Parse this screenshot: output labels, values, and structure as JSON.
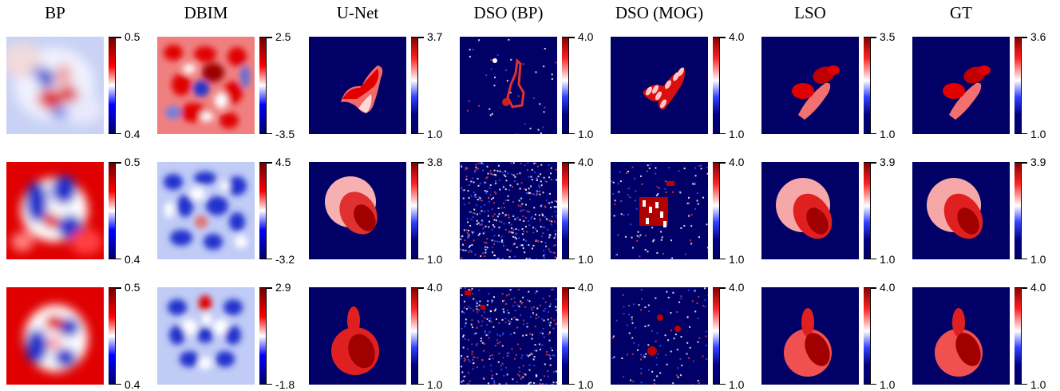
{
  "columns": [
    {
      "title": "BP",
      "ramp": "coolwarm",
      "colorbars": [
        [
          "0.5",
          "0.4"
        ],
        [
          "0.5",
          "0.4"
        ],
        [
          "0.5",
          "0.4"
        ]
      ],
      "kinds": [
        "bp1",
        "bp2",
        "bp3"
      ]
    },
    {
      "title": "DBIM",
      "ramp": "coolwarm",
      "colorbars": [
        [
          "2.5",
          "-3.5"
        ],
        [
          "4.5",
          "-3.2"
        ],
        [
          "2.9",
          "-1.8"
        ]
      ],
      "kinds": [
        "dbim1",
        "dbim2",
        "dbim3"
      ]
    },
    {
      "title": "U-Net",
      "ramp": "navy",
      "colorbars": [
        [
          "3.7",
          "1.0"
        ],
        [
          "3.8",
          "1.0"
        ],
        [
          "4.0",
          "1.0"
        ]
      ],
      "kinds": [
        "unet1",
        "unet2",
        "unet3"
      ]
    },
    {
      "title": "DSO (BP)",
      "ramp": "navy",
      "colorbars": [
        [
          "4.0",
          "1.0"
        ],
        [
          "4.0",
          "1.0"
        ],
        [
          "4.0",
          "1.0"
        ]
      ],
      "kinds": [
        "dsobp1",
        "dsobp2",
        "dsobp3"
      ]
    },
    {
      "title": "DSO (MOG)",
      "ramp": "navy",
      "colorbars": [
        [
          "4.0",
          "1.0"
        ],
        [
          "4.0",
          "1.0"
        ],
        [
          "4.0",
          "1.0"
        ]
      ],
      "kinds": [
        "dsomog1",
        "dsomog2",
        "dsomog3"
      ]
    },
    {
      "title": "LSO",
      "ramp": "navy",
      "colorbars": [
        [
          "3.5",
          "1.0"
        ],
        [
          "3.9",
          "1.0"
        ],
        [
          "4.0",
          "1.0"
        ]
      ],
      "kinds": [
        "lso1",
        "lso2",
        "lso3"
      ]
    },
    {
      "title": "GT",
      "ramp": "navy",
      "colorbars": [
        [
          "3.6",
          "1.0"
        ],
        [
          "3.9",
          "1.0"
        ],
        [
          "4.0",
          "1.0"
        ]
      ],
      "kinds": [
        "gt1",
        "gt2",
        "gt3"
      ]
    }
  ],
  "colors": {
    "navy": "#000066",
    "red": "#d40000",
    "dark_red": "#8a0000",
    "pink": "#f2a0a0",
    "blue": "#2a3ccc",
    "white": "#ffffff"
  }
}
